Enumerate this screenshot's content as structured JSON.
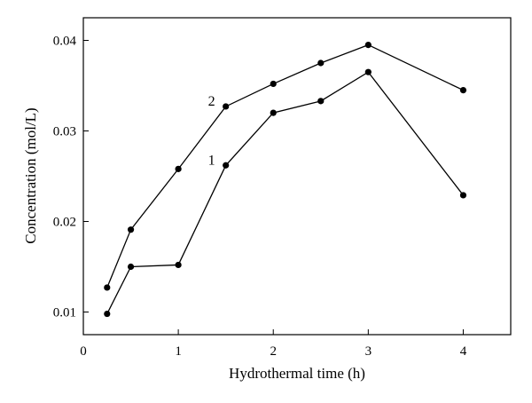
{
  "chart_data": {
    "type": "line",
    "title": "",
    "xlabel": "Hydrothermal time (h)",
    "ylabel": "Concentration (mol/L)",
    "xlim": [
      0,
      4.5
    ],
    "ylim": [
      0.0075,
      0.0425
    ],
    "xticks": [
      0,
      1,
      2,
      3,
      4
    ],
    "yticks": [
      0.01,
      0.02,
      0.03,
      0.04
    ],
    "xtick_labels": [
      "0",
      "1",
      "2",
      "3",
      "4"
    ],
    "ytick_labels": [
      "0.01",
      "0.02",
      "0.03",
      "0.04"
    ],
    "grid": false,
    "series": [
      {
        "name": "1",
        "x": [
          0.25,
          0.5,
          1,
          1.5,
          2,
          2.5,
          3,
          4
        ],
        "y": [
          0.0098,
          0.015,
          0.0152,
          0.0262,
          0.032,
          0.0333,
          0.0365,
          0.0229
        ]
      },
      {
        "name": "2",
        "x": [
          0.25,
          0.5,
          1,
          1.5,
          2,
          2.5,
          3,
          4
        ],
        "y": [
          0.0127,
          0.0191,
          0.0258,
          0.0327,
          0.0352,
          0.0375,
          0.0395,
          0.0345
        ]
      }
    ]
  }
}
